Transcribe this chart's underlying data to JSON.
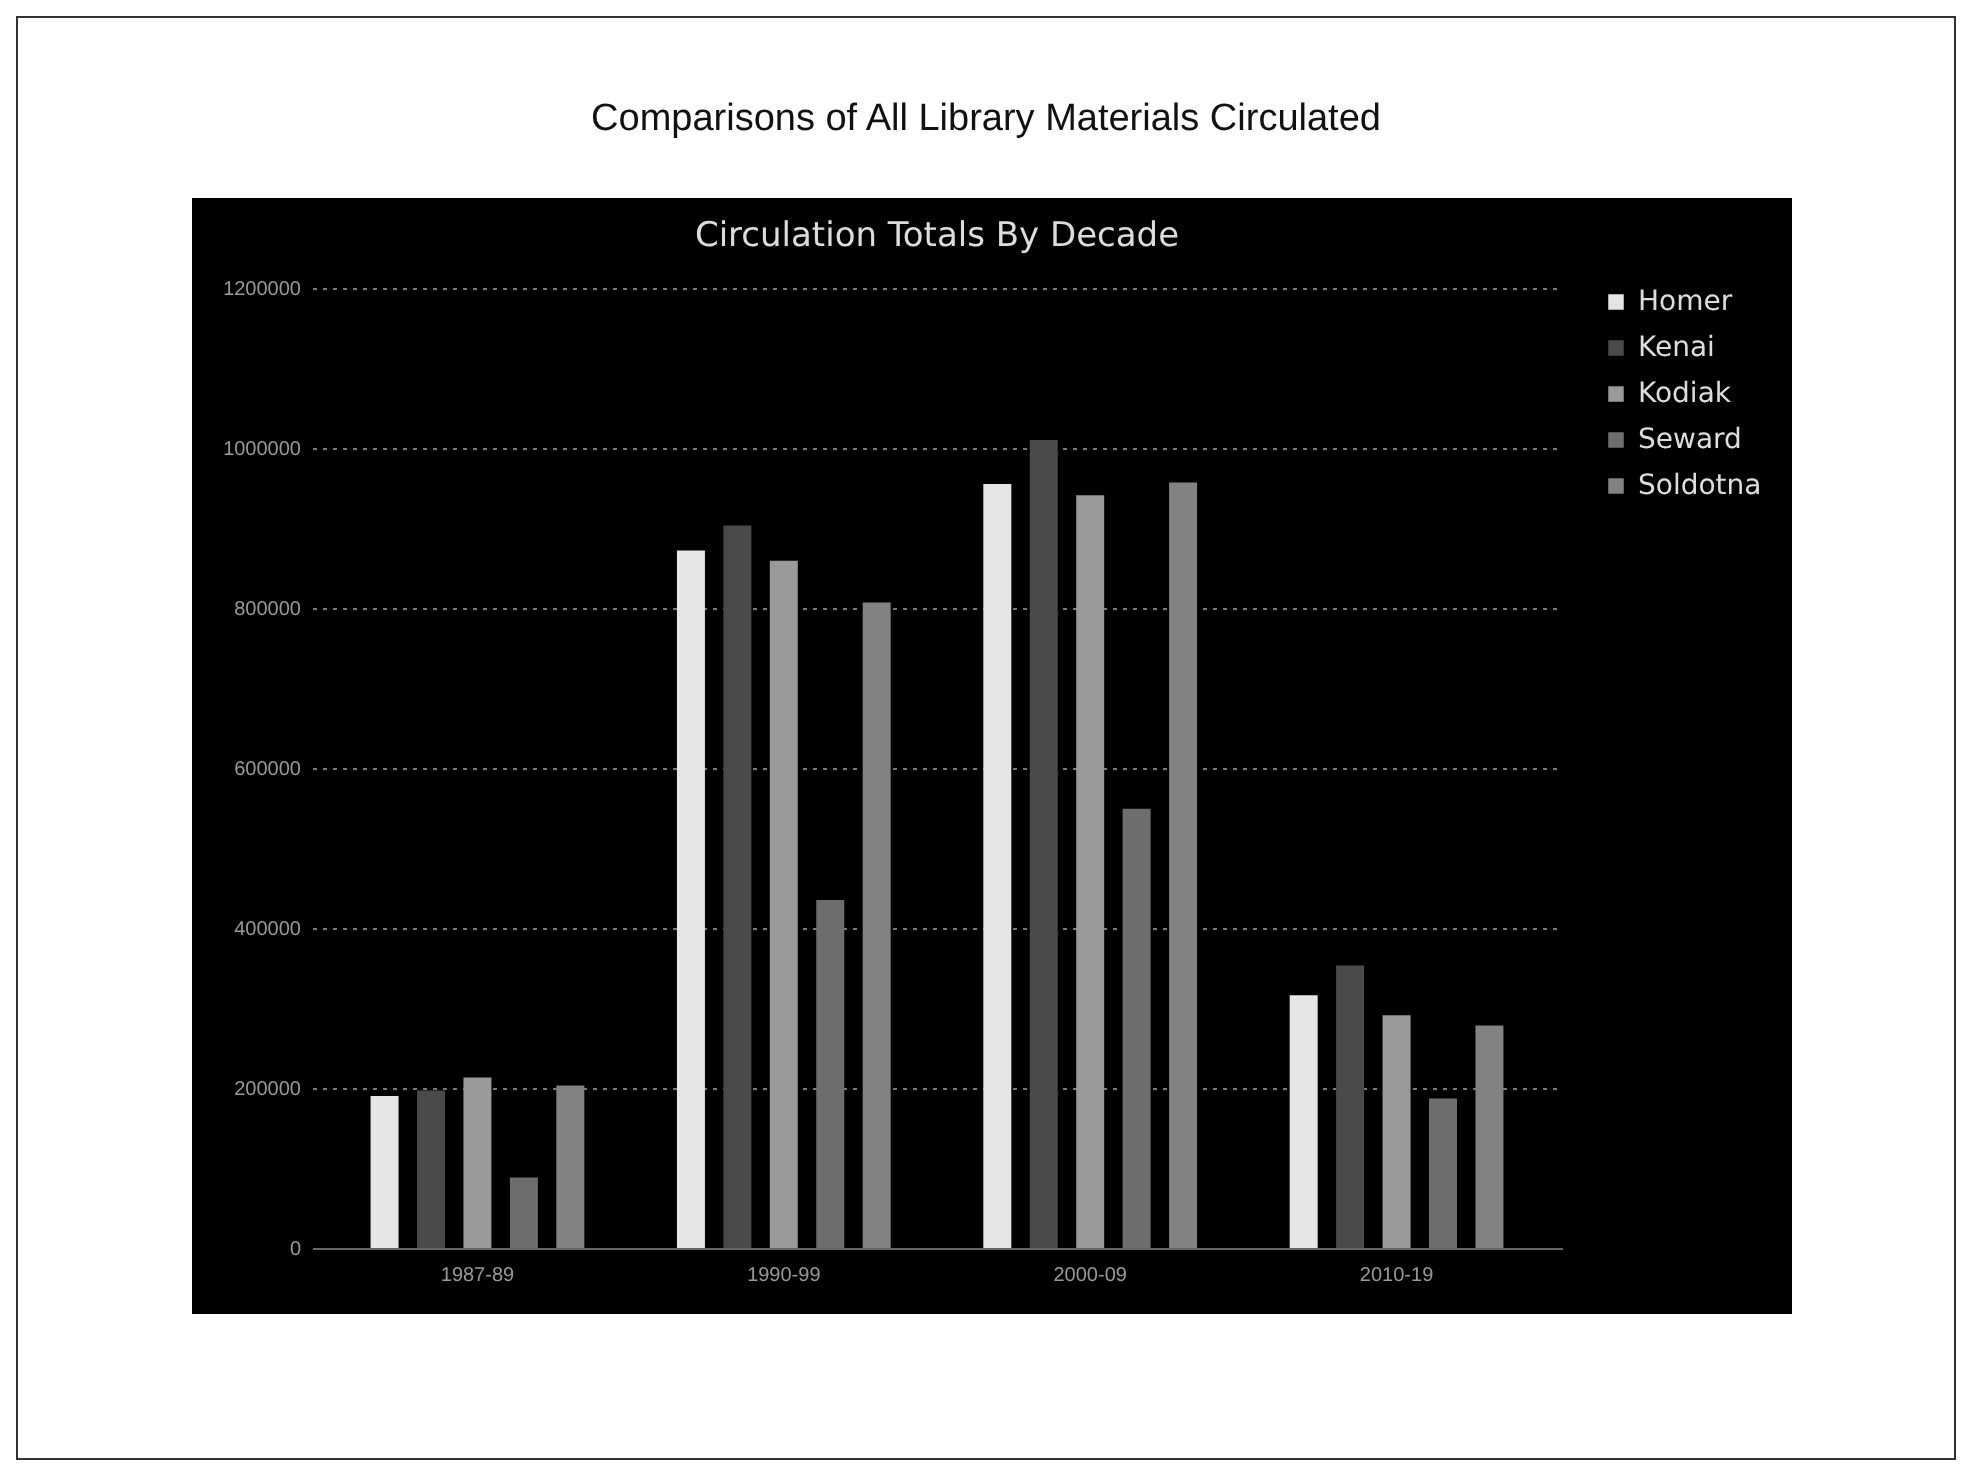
{
  "chart_data": {
    "type": "bar",
    "title": "Comparisons of All Library Materials Circulated",
    "subtitle": "Circulation Totals By Decade",
    "categories": [
      "1987-89",
      "1990-99",
      "2000-09",
      "2010-19"
    ],
    "series": [
      {
        "name": "Homer",
        "color": "#e6e6e6",
        "values": [
          190000,
          872000,
          955000,
          316000
        ]
      },
      {
        "name": "Kenai",
        "color": "#4a4a4a",
        "values": [
          197000,
          903000,
          1010000,
          353000
        ]
      },
      {
        "name": "Kodiak",
        "color": "#9a9a9a",
        "values": [
          213000,
          859000,
          941000,
          291000
        ]
      },
      {
        "name": "Seward",
        "color": "#6e6e6e",
        "values": [
          88000,
          435000,
          549000,
          187000
        ]
      },
      {
        "name": "Soldotna",
        "color": "#828282",
        "values": [
          203000,
          807000,
          957000,
          278000
        ]
      }
    ],
    "ylim": [
      0,
      1200000
    ],
    "yticks": [
      0,
      200000,
      400000,
      600000,
      800000,
      1000000,
      1200000
    ],
    "grid": "y",
    "legend": "right"
  }
}
